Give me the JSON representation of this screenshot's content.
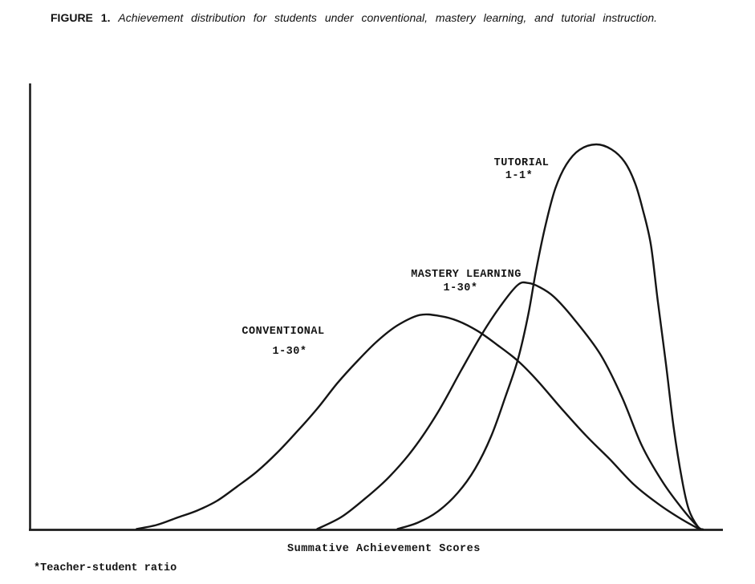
{
  "figure": {
    "caption_label": "FIGURE 1.",
    "caption_text": "Achievement distribution for students under conventional, mastery learning, and tutorial instruction.",
    "footnote": "*Teacher-student ratio"
  },
  "chart_data": {
    "type": "line",
    "title": "FIGURE 1. Achievement distribution for students under conventional, mastery learning, and tutorial instruction.",
    "xlabel": "Summative Achievement Scores",
    "ylabel": "",
    "x_range": [
      0,
      100
    ],
    "y_range": [
      0,
      100
    ],
    "x_ticks": [],
    "y_ticks": [],
    "grid": false,
    "legend": "inline annotations beside each curve",
    "series": [
      {
        "name": "CONVENTIONAL",
        "ratio_label": "1-30*",
        "peak": {
          "x": 56.3,
          "y": 48.2
        },
        "points": [
          [
            15.4,
            0.2
          ],
          [
            18.3,
            1.1
          ],
          [
            21.2,
            2.7
          ],
          [
            24.1,
            4.3
          ],
          [
            27.0,
            6.5
          ],
          [
            29.9,
            9.7
          ],
          [
            32.8,
            13.1
          ],
          [
            35.7,
            17.3
          ],
          [
            38.6,
            22.1
          ],
          [
            41.5,
            27.2
          ],
          [
            44.4,
            32.9
          ],
          [
            47.3,
            37.9
          ],
          [
            50.2,
            42.4
          ],
          [
            53.1,
            45.9
          ],
          [
            56.3,
            48.2
          ],
          [
            59.2,
            48.0
          ],
          [
            61.8,
            46.9
          ],
          [
            64.7,
            44.6
          ],
          [
            67.6,
            41.4
          ],
          [
            70.5,
            37.9
          ],
          [
            73.3,
            33.5
          ],
          [
            76.8,
            27.2
          ],
          [
            80.3,
            21.2
          ],
          [
            83.8,
            15.8
          ],
          [
            87.3,
            10.1
          ],
          [
            90.7,
            5.9
          ],
          [
            93.6,
            2.9
          ],
          [
            96.3,
            0.5
          ],
          [
            97.0,
            0.1
          ]
        ]
      },
      {
        "name": "MASTERY LEARNING",
        "ratio_label": "1-30*",
        "peak": {
          "x": 72.0,
          "y": 55.4
        },
        "points": [
          [
            41.5,
            0.2
          ],
          [
            45.0,
            2.9
          ],
          [
            48.4,
            7.0
          ],
          [
            51.9,
            11.9
          ],
          [
            55.4,
            18.2
          ],
          [
            58.9,
            26.3
          ],
          [
            62.3,
            35.8
          ],
          [
            65.2,
            43.7
          ],
          [
            68.1,
            50.5
          ],
          [
            70.5,
            55.0
          ],
          [
            72.0,
            55.4
          ],
          [
            73.6,
            54.5
          ],
          [
            75.7,
            52.3
          ],
          [
            78.6,
            47.3
          ],
          [
            82.4,
            39.4
          ],
          [
            85.5,
            29.9
          ],
          [
            88.4,
            18.9
          ],
          [
            91.3,
            11.0
          ],
          [
            94.0,
            5.2
          ],
          [
            96.5,
            0.7
          ],
          [
            97.2,
            0.1
          ]
        ]
      },
      {
        "name": "TUTORIAL",
        "ratio_label": "1-1*",
        "peak": {
          "x": 81.8,
          "y": 86.5
        },
        "points": [
          [
            53.1,
            0.2
          ],
          [
            56.0,
            1.6
          ],
          [
            58.9,
            4.1
          ],
          [
            61.8,
            8.3
          ],
          [
            64.3,
            13.7
          ],
          [
            66.6,
            20.9
          ],
          [
            68.7,
            29.9
          ],
          [
            70.5,
            38.3
          ],
          [
            72.0,
            48.4
          ],
          [
            73.1,
            58.1
          ],
          [
            74.5,
            68.5
          ],
          [
            75.9,
            76.6
          ],
          [
            77.5,
            82.0
          ],
          [
            79.4,
            85.3
          ],
          [
            81.8,
            86.5
          ],
          [
            84.0,
            85.4
          ],
          [
            85.9,
            82.6
          ],
          [
            87.4,
            77.9
          ],
          [
            88.5,
            72.1
          ],
          [
            89.7,
            64.0
          ],
          [
            90.7,
            51.4
          ],
          [
            91.9,
            37.1
          ],
          [
            93.0,
            23.0
          ],
          [
            94.2,
            11.3
          ],
          [
            95.2,
            4.5
          ],
          [
            96.5,
            0.7
          ],
          [
            97.2,
            0.1
          ]
        ]
      }
    ]
  },
  "colors": {
    "ink": "#151515",
    "background": "#ffffff"
  }
}
